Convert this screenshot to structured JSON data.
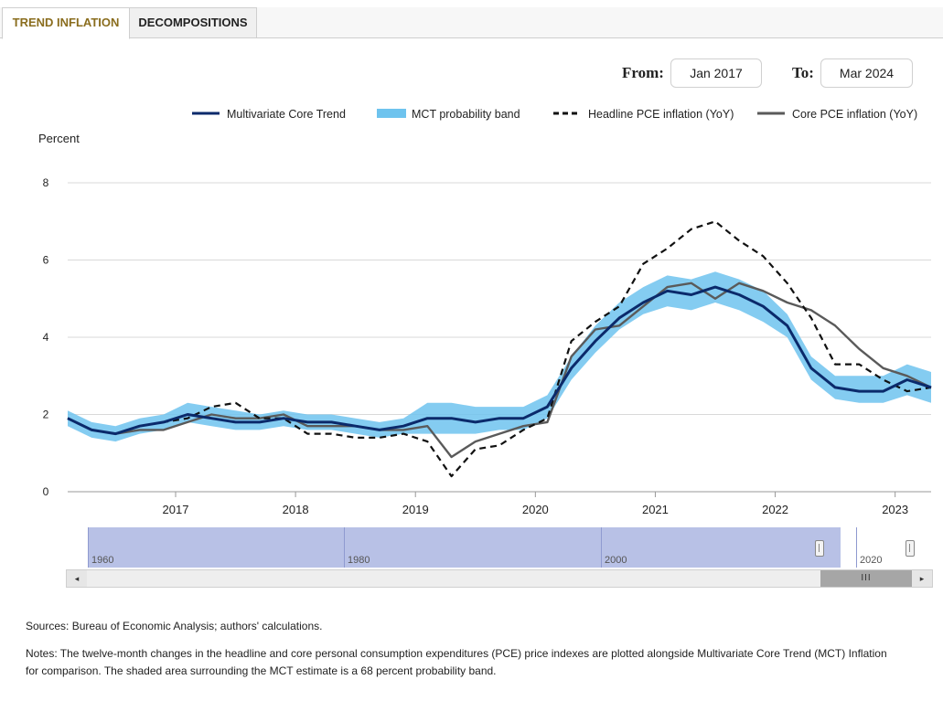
{
  "tabs": [
    {
      "label": "TREND INFLATION",
      "active": true
    },
    {
      "label": "DECOMPOSITIONS",
      "active": false
    }
  ],
  "range": {
    "from_label": "From:",
    "from_value": "Jan 2017",
    "to_label": "To:",
    "to_value": "Mar 2024"
  },
  "navigator": {
    "labels": [
      "1960",
      "1980",
      "2000",
      "2020"
    ],
    "scroll_thumb": "III",
    "left_arrow": "◂",
    "right_arrow": "▸"
  },
  "footnotes": {
    "sources": "Sources: Bureau of Economic Analysis; authors' calculations.",
    "notes": "Notes: The twelve-month changes in the headline and core personal consumption expenditures (PCE) price indexes are plotted alongside Multivariate Core Trend (MCT) Inflation for comparison. The shaded area surrounding the MCT estimate is a 68 percent probability band."
  },
  "colors": {
    "mct": "#0b2a6b",
    "band": "#6ec3ee",
    "headline": "#111111",
    "core": "#5a5a5a",
    "active_tab": "#8a6d1e",
    "navigator": "#b8c1e6"
  },
  "chart_data": {
    "type": "line",
    "ylabel": "Percent",
    "ylim": [
      0,
      8
    ],
    "yticks": [
      0,
      2,
      4,
      6,
      8
    ],
    "xlim": [
      2016.1,
      2023.3
    ],
    "xticks": [
      2017,
      2018,
      2019,
      2020,
      2021,
      2022,
      2023
    ],
    "grid": true,
    "legend_placement": "top-right",
    "legend": [
      "Multivariate Core Trend",
      "MCT probability band",
      "Headline PCE inflation (YoY)",
      "Core PCE inflation (YoY)"
    ],
    "x": [
      2016.1,
      2016.3,
      2016.5,
      2016.7,
      2016.9,
      2017.1,
      2017.3,
      2017.5,
      2017.7,
      2017.9,
      2018.1,
      2018.3,
      2018.5,
      2018.7,
      2018.9,
      2019.1,
      2019.3,
      2019.5,
      2019.7,
      2019.9,
      2020.1,
      2020.3,
      2020.5,
      2020.7,
      2020.9,
      2021.1,
      2021.3,
      2021.5,
      2021.7,
      2021.9,
      2022.1,
      2022.3,
      2022.5,
      2022.7,
      2022.9,
      2023.1,
      2023.3
    ],
    "series": [
      {
        "name": "Multivariate Core Trend",
        "values": [
          1.9,
          1.6,
          1.5,
          1.7,
          1.8,
          2.0,
          1.9,
          1.8,
          1.8,
          1.9,
          1.8,
          1.8,
          1.7,
          1.6,
          1.7,
          1.9,
          1.9,
          1.8,
          1.9,
          1.9,
          2.2,
          3.2,
          3.9,
          4.5,
          4.9,
          5.2,
          5.1,
          5.3,
          5.1,
          4.8,
          4.3,
          3.2,
          2.7,
          2.6,
          2.6,
          2.9,
          2.7
        ]
      },
      {
        "name": "MCT probability band lower",
        "values": [
          1.7,
          1.4,
          1.3,
          1.5,
          1.6,
          1.8,
          1.7,
          1.6,
          1.6,
          1.7,
          1.6,
          1.6,
          1.5,
          1.4,
          1.5,
          1.5,
          1.5,
          1.5,
          1.6,
          1.6,
          1.9,
          2.9,
          3.6,
          4.2,
          4.6,
          4.8,
          4.7,
          4.9,
          4.7,
          4.4,
          4.0,
          2.9,
          2.4,
          2.3,
          2.3,
          2.5,
          2.3
        ]
      },
      {
        "name": "MCT probability band upper",
        "values": [
          2.1,
          1.8,
          1.7,
          1.9,
          2.0,
          2.3,
          2.2,
          2.1,
          2.0,
          2.1,
          2.0,
          2.0,
          1.9,
          1.8,
          1.9,
          2.3,
          2.3,
          2.2,
          2.2,
          2.2,
          2.5,
          3.5,
          4.3,
          4.9,
          5.3,
          5.6,
          5.5,
          5.7,
          5.5,
          5.2,
          4.6,
          3.5,
          3.0,
          3.0,
          3.0,
          3.3,
          3.1
        ]
      },
      {
        "name": "Headline PCE inflation (YoY)",
        "values": [
          1.9,
          1.6,
          1.5,
          1.7,
          1.8,
          1.9,
          2.2,
          2.3,
          1.9,
          1.9,
          1.5,
          1.5,
          1.4,
          1.4,
          1.5,
          1.3,
          0.4,
          1.1,
          1.2,
          1.6,
          1.9,
          3.9,
          4.4,
          4.8,
          5.9,
          6.3,
          6.8,
          7.0,
          6.5,
          6.1,
          5.4,
          4.5,
          3.3,
          3.3,
          2.9,
          2.6,
          2.7
        ]
      },
      {
        "name": "Core PCE inflation (YoY)",
        "values": [
          1.9,
          1.6,
          1.5,
          1.6,
          1.6,
          1.8,
          2.0,
          1.9,
          1.9,
          2.0,
          1.7,
          1.7,
          1.7,
          1.6,
          1.6,
          1.7,
          0.9,
          1.3,
          1.5,
          1.7,
          1.8,
          3.5,
          4.2,
          4.3,
          4.8,
          5.3,
          5.4,
          5.0,
          5.4,
          5.2,
          4.9,
          4.7,
          4.3,
          3.7,
          3.2,
          3.0,
          2.7
        ]
      }
    ]
  }
}
